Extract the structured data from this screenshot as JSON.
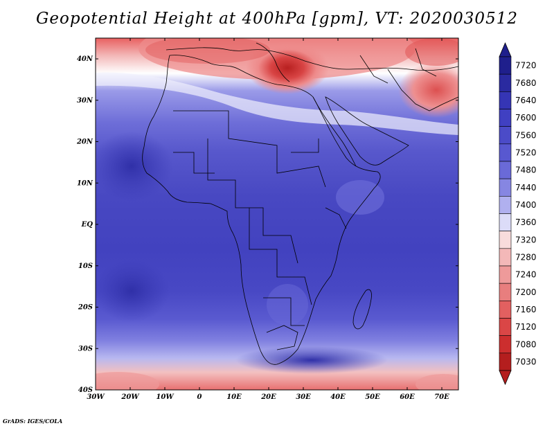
{
  "title": "Geopotential Height at 400hPa [gpm], VT: 2020030512",
  "credit": "GrADS: IGES/COLA",
  "map": {
    "lat_labels": [
      "40N",
      "30N",
      "20N",
      "10N",
      "EQ",
      "10S",
      "20S",
      "30S",
      "40S"
    ],
    "lon_labels": [
      "30W",
      "20W",
      "10W",
      "0",
      "10E",
      "20E",
      "30E",
      "40E",
      "50E",
      "60E",
      "70E"
    ]
  },
  "colorbar": {
    "levels": [
      "7720",
      "7680",
      "7640",
      "7600",
      "7560",
      "7520",
      "7480",
      "7440",
      "7400",
      "7360",
      "7320",
      "7280",
      "7240",
      "7200",
      "7160",
      "7120",
      "7080",
      "7030"
    ],
    "colors": [
      "#1f1f8c",
      "#2a2aa0",
      "#3535b5",
      "#4040c2",
      "#4b4bc8",
      "#5858d0",
      "#6a6ad8",
      "#8686e2",
      "#b0b0ef",
      "#dcdcf8",
      "#f8dcdc",
      "#f3b8b8",
      "#ee9a9a",
      "#e87e7e",
      "#e26060",
      "#da4646",
      "#cc2e2e",
      "#b41e1e"
    ]
  }
}
